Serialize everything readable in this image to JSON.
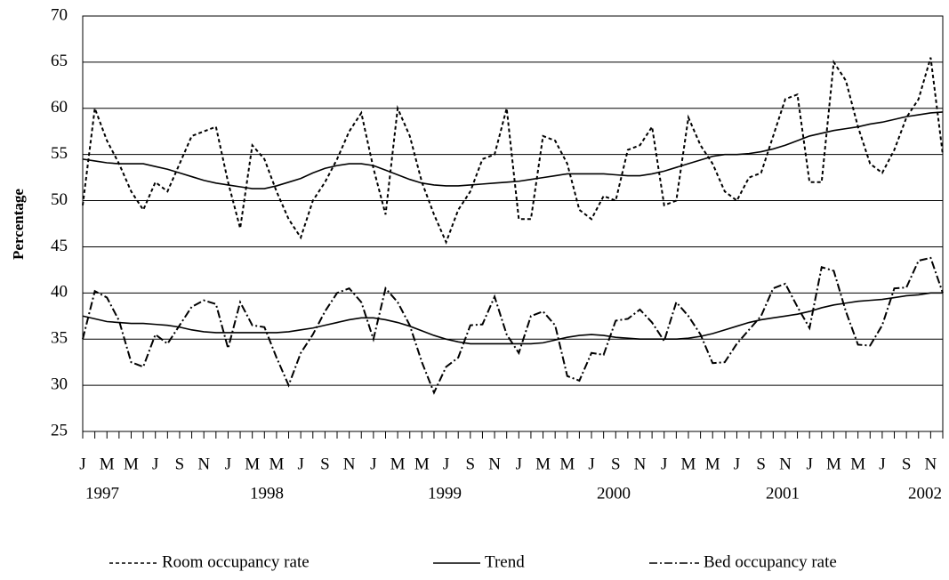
{
  "chart_data": {
    "type": "line",
    "ylabel": "Percentage",
    "ylim": [
      25,
      70
    ],
    "yticks": [
      25,
      30,
      35,
      40,
      45,
      50,
      55,
      60,
      65,
      70
    ],
    "grid": true,
    "categories": [
      "J",
      null,
      "M",
      null,
      "M",
      null,
      "J",
      null,
      "S",
      null,
      "N",
      null,
      "J",
      null,
      "M",
      null,
      "M",
      null,
      "J",
      null,
      "S",
      null,
      "N",
      null,
      "J",
      null,
      "M",
      null,
      "M",
      null,
      "J",
      null,
      "S",
      null,
      "N",
      null,
      "J",
      null,
      "M",
      null,
      "M",
      null,
      "J",
      null,
      "S",
      null,
      "N",
      null,
      "J",
      null,
      "M",
      null,
      "M",
      null,
      "J",
      null,
      "S",
      null,
      "N",
      null,
      "J",
      null,
      "M",
      null,
      "M",
      null,
      "J",
      null,
      "S",
      null,
      "N",
      null
    ],
    "years": [
      "1997",
      "1998",
      "1999",
      "2000",
      "2001",
      "2002"
    ],
    "trend_label": "Trend",
    "legend": "bottom",
    "series": [
      {
        "name": "Room occupancy rate",
        "color": "#000000",
        "dash": "4,3",
        "values": [
          49.5,
          60,
          56.5,
          54,
          51,
          49,
          52,
          51,
          54,
          57,
          57.5,
          58,
          52,
          47,
          56,
          54.5,
          51,
          48,
          46,
          50,
          52,
          54.5,
          57.5,
          59.5,
          53.5,
          48.5,
          60,
          57,
          52,
          48.5,
          45.5,
          49,
          51,
          54.5,
          55,
          60,
          48,
          48,
          57,
          56.5,
          54,
          49,
          48,
          50.5,
          50,
          55.5,
          56,
          58,
          49.5,
          50,
          59,
          56,
          54,
          51,
          50,
          52.5,
          53,
          57,
          61,
          61.5,
          52,
          52,
          65,
          63,
          58,
          54,
          53,
          55.5,
          59,
          61,
          65.5,
          55
        ],
        "trend": [
          54.5,
          54.3,
          54.1,
          54.0,
          54.0,
          54.0,
          53.7,
          53.4,
          53.0,
          52.6,
          52.2,
          51.9,
          51.7,
          51.5,
          51.3,
          51.3,
          51.6,
          52.0,
          52.4,
          53.0,
          53.5,
          53.8,
          54.0,
          54.0,
          53.8,
          53.3,
          52.8,
          52.3,
          51.9,
          51.7,
          51.6,
          51.6,
          51.7,
          51.8,
          51.9,
          52.0,
          52.1,
          52.3,
          52.5,
          52.7,
          52.9,
          52.9,
          52.9,
          52.9,
          52.8,
          52.7,
          52.7,
          52.9,
          53.2,
          53.6,
          54.0,
          54.4,
          54.8,
          55.0,
          55.0,
          55.1,
          55.3,
          55.6,
          56.0,
          56.5,
          57.0,
          57.3,
          57.6,
          57.8,
          58.0,
          58.3,
          58.5,
          58.8,
          59.1,
          59.3,
          59.5,
          59.6
        ]
      },
      {
        "name": "Bed occupancy rate",
        "color": "#000000",
        "dash": "9,3,2,3",
        "values": [
          35,
          40.2,
          39.5,
          37,
          32.5,
          32,
          35.5,
          34.5,
          36.5,
          38.5,
          39.2,
          38.8,
          34,
          39,
          36.5,
          36.3,
          33,
          30,
          33.5,
          35.5,
          38,
          40,
          40.5,
          39,
          35,
          40.5,
          39,
          36.5,
          32.5,
          29.2,
          32,
          33,
          36.5,
          36.6,
          39.6,
          35.5,
          33.5,
          37.5,
          38,
          36.5,
          31,
          30.5,
          33.5,
          33.3,
          37,
          37.2,
          38.2,
          36.8,
          34.8,
          39,
          37.5,
          35.5,
          32.4,
          32.5,
          34.5,
          36,
          37.5,
          40.5,
          41,
          38.5,
          36.2,
          42.8,
          42.4,
          38,
          34.4,
          34.3,
          36.5,
          40.5,
          40.6,
          43.5,
          43.8,
          40
        ],
        "trend": [
          37.5,
          37.2,
          36.9,
          36.8,
          36.7,
          36.7,
          36.6,
          36.5,
          36.3,
          36.0,
          35.8,
          35.7,
          35.7,
          35.7,
          35.7,
          35.7,
          35.7,
          35.8,
          36.0,
          36.2,
          36.5,
          36.8,
          37.1,
          37.3,
          37.3,
          37.1,
          36.8,
          36.4,
          35.9,
          35.4,
          35.0,
          34.7,
          34.5,
          34.5,
          34.5,
          34.5,
          34.5,
          34.5,
          34.6,
          34.9,
          35.2,
          35.4,
          35.5,
          35.4,
          35.2,
          35.1,
          35.0,
          35.0,
          35.0,
          35.0,
          35.1,
          35.3,
          35.6,
          36.0,
          36.4,
          36.8,
          37.1,
          37.3,
          37.5,
          37.7,
          38.0,
          38.4,
          38.7,
          38.9,
          39.1,
          39.2,
          39.3,
          39.5,
          39.7,
          39.8,
          40.0,
          40.0
        ]
      }
    ]
  }
}
